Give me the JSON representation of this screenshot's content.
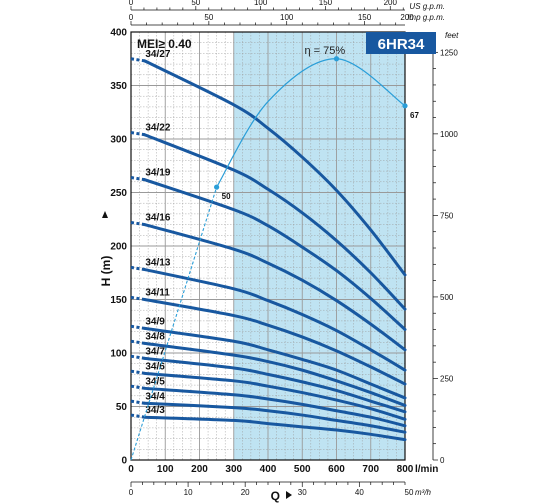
{
  "chart_data": {
    "type": "line",
    "title": "6HR34",
    "annotation": "MEI≥ 0.40",
    "xlabel": "Q",
    "ylabel": "H (m)",
    "x_unit_label": "l/min",
    "x_range": [
      0,
      800
    ],
    "ylim": [
      0,
      400
    ],
    "x_ticks": [
      "0",
      "100",
      "200",
      "300",
      "400",
      "500",
      "600",
      "700",
      "800"
    ],
    "y_ticks": [
      "0",
      "50",
      "100",
      "150",
      "200",
      "250",
      "300",
      "350",
      "400"
    ],
    "grid": true,
    "recommended_range": [
      300,
      800
    ],
    "top_axis_us": {
      "label": "US g.p.m.",
      "ticks": [
        "0",
        "50",
        "100",
        "150",
        "200"
      ]
    },
    "top_axis_imp": {
      "label": "Imp g.p.m.",
      "ticks": [
        "0",
        "50",
        "100",
        "150",
        "200"
      ]
    },
    "bottom_axis_m3h": {
      "label": "m³/h",
      "ticks": [
        "0",
        "10",
        "20",
        "30",
        "40",
        "50"
      ]
    },
    "right_axis_feet": {
      "label": "feet",
      "ticks": [
        "0",
        "250",
        "500",
        "750",
        "1000",
        "1250"
      ]
    },
    "series": [
      {
        "name": "34/27",
        "values": [
          {
            "x": 0,
            "y": 375
          },
          {
            "x": 300,
            "y": 332
          },
          {
            "x": 400,
            "y": 310
          },
          {
            "x": 500,
            "y": 283
          },
          {
            "x": 600,
            "y": 252
          },
          {
            "x": 700,
            "y": 215
          },
          {
            "x": 800,
            "y": 173
          }
        ]
      },
      {
        "name": "34/22",
        "values": [
          {
            "x": 0,
            "y": 306
          },
          {
            "x": 300,
            "y": 271
          },
          {
            "x": 400,
            "y": 253
          },
          {
            "x": 500,
            "y": 231
          },
          {
            "x": 600,
            "y": 205
          },
          {
            "x": 700,
            "y": 175
          },
          {
            "x": 800,
            "y": 141
          }
        ]
      },
      {
        "name": "34/19",
        "values": [
          {
            "x": 0,
            "y": 264
          },
          {
            "x": 300,
            "y": 234
          },
          {
            "x": 400,
            "y": 219
          },
          {
            "x": 500,
            "y": 199
          },
          {
            "x": 600,
            "y": 177
          },
          {
            "x": 700,
            "y": 151
          },
          {
            "x": 800,
            "y": 122
          }
        ]
      },
      {
        "name": "34/16",
        "values": [
          {
            "x": 0,
            "y": 222
          },
          {
            "x": 300,
            "y": 197
          },
          {
            "x": 400,
            "y": 184
          },
          {
            "x": 500,
            "y": 168
          },
          {
            "x": 600,
            "y": 149
          },
          {
            "x": 700,
            "y": 127
          },
          {
            "x": 800,
            "y": 103
          }
        ]
      },
      {
        "name": "34/13",
        "values": [
          {
            "x": 0,
            "y": 180
          },
          {
            "x": 300,
            "y": 160
          },
          {
            "x": 400,
            "y": 149
          },
          {
            "x": 500,
            "y": 136
          },
          {
            "x": 600,
            "y": 121
          },
          {
            "x": 700,
            "y": 103
          },
          {
            "x": 800,
            "y": 84
          }
        ]
      },
      {
        "name": "34/11",
        "values": [
          {
            "x": 0,
            "y": 152
          },
          {
            "x": 300,
            "y": 135
          },
          {
            "x": 400,
            "y": 126
          },
          {
            "x": 500,
            "y": 115
          },
          {
            "x": 600,
            "y": 102
          },
          {
            "x": 700,
            "y": 87
          },
          {
            "x": 800,
            "y": 71
          }
        ]
      },
      {
        "name": "34/9",
        "values": [
          {
            "x": 0,
            "y": 125
          },
          {
            "x": 300,
            "y": 111
          },
          {
            "x": 400,
            "y": 103
          },
          {
            "x": 500,
            "y": 94
          },
          {
            "x": 600,
            "y": 84
          },
          {
            "x": 700,
            "y": 71
          },
          {
            "x": 800,
            "y": 58
          }
        ]
      },
      {
        "name": "34/8",
        "values": [
          {
            "x": 0,
            "y": 111
          },
          {
            "x": 300,
            "y": 98
          },
          {
            "x": 400,
            "y": 92
          },
          {
            "x": 500,
            "y": 84
          },
          {
            "x": 600,
            "y": 74
          },
          {
            "x": 700,
            "y": 63
          },
          {
            "x": 800,
            "y": 51
          }
        ]
      },
      {
        "name": "34/7",
        "values": [
          {
            "x": 0,
            "y": 97
          },
          {
            "x": 300,
            "y": 86
          },
          {
            "x": 400,
            "y": 80
          },
          {
            "x": 500,
            "y": 73
          },
          {
            "x": 600,
            "y": 65
          },
          {
            "x": 700,
            "y": 55
          },
          {
            "x": 800,
            "y": 45
          }
        ]
      },
      {
        "name": "34/6",
        "values": [
          {
            "x": 0,
            "y": 83
          },
          {
            "x": 300,
            "y": 74
          },
          {
            "x": 400,
            "y": 69
          },
          {
            "x": 500,
            "y": 63
          },
          {
            "x": 600,
            "y": 56
          },
          {
            "x": 700,
            "y": 48
          },
          {
            "x": 800,
            "y": 38
          }
        ]
      },
      {
        "name": "34/5",
        "values": [
          {
            "x": 0,
            "y": 69
          },
          {
            "x": 300,
            "y": 61
          },
          {
            "x": 400,
            "y": 57
          },
          {
            "x": 500,
            "y": 52
          },
          {
            "x": 600,
            "y": 46
          },
          {
            "x": 700,
            "y": 40
          },
          {
            "x": 800,
            "y": 32
          }
        ]
      },
      {
        "name": "34/4",
        "values": [
          {
            "x": 0,
            "y": 55
          },
          {
            "x": 300,
            "y": 49
          },
          {
            "x": 400,
            "y": 46
          },
          {
            "x": 500,
            "y": 42
          },
          {
            "x": 600,
            "y": 37
          },
          {
            "x": 700,
            "y": 32
          },
          {
            "x": 800,
            "y": 26
          }
        ]
      },
      {
        "name": "34/3",
        "values": [
          {
            "x": 0,
            "y": 42
          },
          {
            "x": 300,
            "y": 37
          },
          {
            "x": 400,
            "y": 34
          },
          {
            "x": 500,
            "y": 31
          },
          {
            "x": 600,
            "y": 28
          },
          {
            "x": 700,
            "y": 24
          },
          {
            "x": 800,
            "y": 19
          }
        ]
      }
    ],
    "efficiency_curve": {
      "label": "η = 75%",
      "points": [
        {
          "x": 0,
          "y": 0
        },
        {
          "x": 250,
          "y": 255
        },
        {
          "x": 400,
          "y": 335
        },
        {
          "x": 600,
          "y": 375
        },
        {
          "x": 800,
          "y": 331
        }
      ],
      "marked_points": [
        {
          "x": 250,
          "y": 255,
          "label": "50"
        },
        {
          "x": 600,
          "y": 375,
          "label": ""
        },
        {
          "x": 800,
          "y": 331,
          "label": "67"
        }
      ]
    },
    "colors": {
      "curve": "#1858a0",
      "efficiency": "#2a9ed8",
      "band": "#bfe3f2",
      "model_box": "#1858a0",
      "grid": "#9a9a9a"
    }
  }
}
